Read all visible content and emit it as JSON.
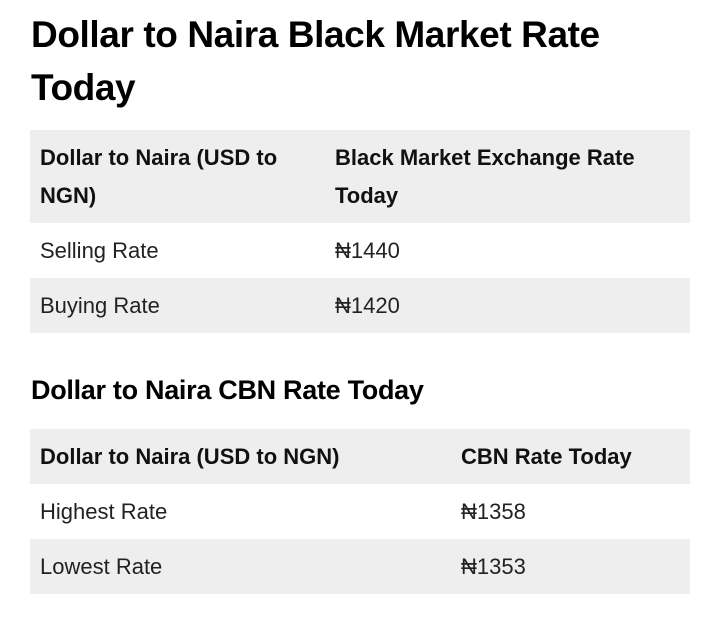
{
  "black_market": {
    "title": "Dollar to Naira Black Market Rate Today",
    "table": {
      "headers": [
        "Dollar to Naira (USD to NGN)",
        "Black Market Exchange Rate Today"
      ],
      "rows": [
        [
          "Selling Rate",
          "₦1440"
        ],
        [
          "Buying Rate",
          "₦1420"
        ]
      ]
    }
  },
  "cbn": {
    "title": "Dollar to Naira CBN Rate Today",
    "table": {
      "headers": [
        "Dollar to Naira (USD to NGN)",
        "CBN Rate Today"
      ],
      "rows": [
        [
          "Highest Rate",
          "₦1358"
        ],
        [
          "Lowest Rate",
          "₦1353"
        ]
      ]
    }
  },
  "colors": {
    "shaded_row": "#eeeeee",
    "text": "#111111",
    "background": "#ffffff"
  }
}
